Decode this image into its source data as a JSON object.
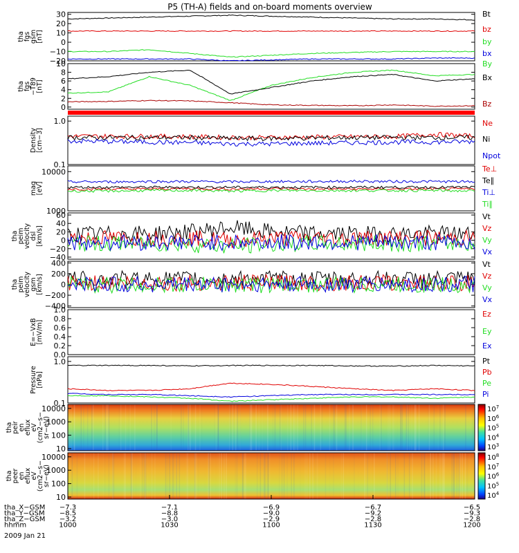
{
  "title": "P5 (TH-A) fields and on-board moments overview",
  "colors": {
    "black": "#000000",
    "red": "#e00000",
    "green": "#22dd22",
    "blue": "#0000dd",
    "darkred": "#aa0000",
    "brightred": "#ff0000"
  },
  "chart_data": [
    {
      "type": "line",
      "panel": "fgs_gsm",
      "ylabel": [
        "tha",
        "fgs",
        "gsm",
        "[nT]"
      ],
      "ylim": [
        -20,
        32
      ],
      "ticks": [
        "30",
        "20",
        "10",
        "0",
        "−10",
        "−20"
      ],
      "tick_values": [
        30,
        20,
        10,
        0,
        -10,
        -20
      ],
      "series": [
        {
          "name": "Bt",
          "color": "#000000",
          "y": [
            25,
            26,
            27,
            28,
            29,
            28,
            27,
            26,
            25,
            25,
            24
          ]
        },
        {
          "name": "bz",
          "color": "#e00000",
          "y": [
            12,
            12,
            12,
            12,
            12,
            12,
            12,
            12,
            12,
            12,
            12
          ]
        },
        {
          "name": "by",
          "color": "#22dd22",
          "y": [
            -10,
            -10,
            -8,
            -12,
            -16,
            -14,
            -12,
            -11,
            -10,
            -10,
            -10
          ]
        },
        {
          "name": "bx",
          "color": "#0000dd",
          "y": [
            -18,
            -18,
            -18,
            -18,
            -20,
            -19,
            -18,
            -18,
            -18,
            -17,
            -17
          ]
        }
      ]
    },
    {
      "type": "line",
      "panel": "fgs_gsm_tsy",
      "ylabel": [
        "tha",
        "fgs",
        "−T89",
        "[nT]"
      ],
      "ylim": [
        -0.5,
        10
      ],
      "ticks": [
        "10",
        "8",
        "6",
        "4",
        "2",
        "0"
      ],
      "tick_values": [
        10,
        8,
        6,
        4,
        2,
        0
      ],
      "series": [
        {
          "name": "By",
          "color": "#22dd22",
          "y": [
            3.2,
            3.5,
            7,
            5,
            1.5,
            5,
            6.8,
            8,
            8.5,
            7.2,
            7.5
          ]
        },
        {
          "name": "Bx",
          "color": "#000000",
          "y": [
            6.5,
            7,
            8,
            8.5,
            3,
            4.5,
            6,
            7,
            7.5,
            6,
            6.5
          ]
        },
        {
          "name": "Bz",
          "color": "#aa0000",
          "y": [
            1.2,
            1.3,
            1.5,
            1.4,
            1,
            0.5,
            0.4,
            0.3,
            0.5,
            0.2,
            0.3
          ]
        }
      ]
    },
    {
      "type": "line",
      "panel": "density",
      "ylabel": [
        "Density",
        "[cm−3]"
      ],
      "ylim": [
        0.1,
        1.3
      ],
      "log": true,
      "ticks": [
        "1.0",
        "0.1"
      ],
      "tick_values": [
        1,
        0.1
      ],
      "series": [
        {
          "name": "Ne",
          "color": "#e00000",
          "y": [
            0.45,
            0.45,
            0.45,
            0.44,
            0.42,
            0.42,
            0.43,
            0.44,
            0.44,
            0.5,
            0.45
          ]
        },
        {
          "name": "Ni",
          "color": "#000000",
          "y": [
            0.42,
            0.42,
            0.42,
            0.42,
            0.4,
            0.4,
            0.41,
            0.42,
            0.42,
            0.42,
            0.42
          ]
        },
        {
          "name": "Npot",
          "color": "#0000dd",
          "y": [
            0.35,
            0.34,
            0.33,
            0.32,
            0.3,
            0.3,
            0.31,
            0.32,
            0.33,
            0.33,
            0.34
          ]
        }
      ]
    },
    {
      "type": "line",
      "panel": "temperature",
      "ylabel": [
        "mag",
        "[eV]"
      ],
      "ylim": [
        1000,
        14000
      ],
      "log": true,
      "ticks": [
        "10000",
        "1000"
      ],
      "tick_values": [
        10000,
        1000
      ],
      "series": [
        {
          "name": "Te⊥",
          "color": "#e00000",
          "y": [
            3600,
            3600,
            3600,
            3700,
            3600,
            3700,
            3600,
            3600,
            3600,
            3600,
            3600
          ]
        },
        {
          "name": "Te∥",
          "color": "#000000",
          "y": [
            4000,
            4000,
            4000,
            4000,
            4000,
            4000,
            4000,
            4000,
            4000,
            4000,
            4000
          ]
        },
        {
          "name": "Ti⊥",
          "color": "#0000dd",
          "y": [
            5500,
            5500,
            5600,
            5600,
            5500,
            5600,
            5600,
            5700,
            5600,
            5600,
            5500
          ]
        },
        {
          "name": "Ti∥",
          "color": "#22dd22",
          "y": [
            3200,
            3200,
            3300,
            3300,
            3200,
            3300,
            3300,
            3300,
            3300,
            3300,
            3200
          ]
        }
      ]
    },
    {
      "type": "line",
      "panel": "velocity_dsl",
      "ylabel": [
        "tha",
        "peim",
        "velocity",
        "dsl",
        "[km/s]"
      ],
      "ylim": [
        -45,
        65
      ],
      "ticks": [
        "60",
        "40",
        "20",
        "0",
        "−20",
        "−40"
      ],
      "tick_values": [
        60,
        40,
        20,
        0,
        -20,
        -40
      ],
      "series": [
        {
          "name": "Vt",
          "color": "#000000",
          "y": [
            15,
            15,
            16,
            20,
            30,
            20,
            16,
            15,
            15,
            16,
            15
          ]
        },
        {
          "name": "Vz",
          "color": "#e00000",
          "y": [
            5,
            5,
            5,
            5,
            0,
            5,
            5,
            5,
            5,
            5,
            5
          ]
        },
        {
          "name": "Vy",
          "color": "#22dd22",
          "y": [
            -8,
            -8,
            -8,
            -10,
            -15,
            -10,
            -8,
            -8,
            -8,
            -8,
            -8
          ]
        },
        {
          "name": "Vx",
          "color": "#0000dd",
          "y": [
            -5,
            -5,
            -5,
            -5,
            -5,
            -5,
            -5,
            -5,
            -5,
            -5,
            -5
          ]
        }
      ]
    },
    {
      "type": "line",
      "panel": "velocity_gsm",
      "ylabel": [
        "tha",
        "peim",
        "velocity",
        "gsm",
        "[km/s]"
      ],
      "ylim": [
        -430,
        430
      ],
      "ticks": [
        "400",
        "200",
        "0",
        "−200",
        "−400"
      ],
      "tick_values": [
        400,
        200,
        0,
        -200,
        -400
      ],
      "series": [
        {
          "name": "Vt",
          "color": "#000000",
          "y": [
            100,
            100,
            100,
            100,
            110,
            100,
            100,
            100,
            100,
            100,
            100
          ]
        },
        {
          "name": "Vz",
          "color": "#e00000",
          "y": [
            30,
            30,
            30,
            30,
            30,
            30,
            30,
            30,
            30,
            30,
            30
          ]
        },
        {
          "name": "Vy",
          "color": "#22dd22",
          "y": [
            -10,
            -10,
            -10,
            -10,
            -10,
            -10,
            -10,
            -10,
            -10,
            -10,
            -10
          ]
        },
        {
          "name": "Vx",
          "color": "#0000dd",
          "y": [
            0,
            0,
            0,
            0,
            0,
            0,
            0,
            0,
            0,
            0,
            0
          ]
        }
      ]
    },
    {
      "type": "line",
      "panel": "efield",
      "ylabel": [
        "E=−VxB",
        "[mV/m]"
      ],
      "ylim": [
        0,
        1
      ],
      "ticks": [
        "1.0",
        "0.8",
        "0.6",
        "0.4",
        "0.2",
        "0.0"
      ],
      "tick_values": [
        1,
        0.8,
        0.6,
        0.4,
        0.2,
        0
      ],
      "series": [
        {
          "name": "Ez",
          "color": "#e00000",
          "y": []
        },
        {
          "name": "Ey",
          "color": "#22dd22",
          "y": []
        },
        {
          "name": "Ex",
          "color": "#0000dd",
          "y": []
        }
      ]
    },
    {
      "type": "line",
      "panel": "pressure",
      "ylabel": [
        "Pressure",
        "[nPa]"
      ],
      "ylim": [
        0.1,
        1.3
      ],
      "log": true,
      "ticks": [
        "1.0",
        "0.1"
      ],
      "tick_values": [
        1,
        0.1
      ],
      "series": [
        {
          "name": "Pt",
          "color": "#000000",
          "y": [
            0.8,
            0.8,
            0.8,
            0.78,
            0.8,
            0.8,
            0.8,
            0.78,
            0.77,
            0.8,
            0.78
          ]
        },
        {
          "name": "Pb",
          "color": "#e00000",
          "y": [
            0.22,
            0.2,
            0.2,
            0.22,
            0.3,
            0.28,
            0.25,
            0.22,
            0.2,
            0.22,
            0.2
          ]
        },
        {
          "name": "Pe",
          "color": "#22dd22",
          "y": [
            0.15,
            0.15,
            0.14,
            0.13,
            0.11,
            0.12,
            0.13,
            0.14,
            0.14,
            0.13,
            0.14
          ]
        },
        {
          "name": "Pi",
          "color": "#0000dd",
          "y": [
            0.17,
            0.16,
            0.16,
            0.15,
            0.14,
            0.15,
            0.16,
            0.16,
            0.16,
            0.16,
            0.16
          ]
        }
      ]
    },
    {
      "type": "heatmap",
      "panel": "peir_eflux",
      "ylabel": [
        "tha",
        "peir",
        "en",
        "eflux",
        "eV",
        "(cm2−s−",
        "sr−eV)"
      ],
      "log": true,
      "ticks": [
        "10000",
        "1000",
        "100",
        "10"
      ],
      "tick_values": [
        10000,
        1000,
        100,
        10
      ],
      "colorbar_ticks": [
        "10",
        "10",
        "10",
        "10",
        "10"
      ],
      "colorbar_exps": [
        "7",
        "6",
        "5",
        "4",
        "3"
      ]
    },
    {
      "type": "heatmap",
      "panel": "peer_eflux",
      "ylabel": [
        "tha",
        "peer",
        "en",
        "eflux",
        "eV",
        "(cm2−s−",
        "sr−eV)"
      ],
      "log": true,
      "ticks": [
        "10000",
        "1000",
        "100",
        "10"
      ],
      "tick_values": [
        10000,
        1000,
        100,
        10
      ],
      "colorbar_ticks": [
        "10",
        "10",
        "10",
        "10",
        "10"
      ],
      "colorbar_exps": [
        "8",
        "7",
        "6",
        "5",
        "4"
      ]
    }
  ],
  "x_axis": {
    "rows": [
      {
        "label": "tha_X−GSM",
        "values": [
          "−7.3",
          "−7.1",
          "−6.9",
          "−6.7",
          "−6.5"
        ]
      },
      {
        "label": "tha_Y−GSM",
        "values": [
          "−8.5",
          "−8.8",
          "−9.0",
          "−9.2",
          "−9.3"
        ]
      },
      {
        "label": "tha_Z−GSM",
        "values": [
          "−3.2",
          "−3.0",
          "−2.9",
          "−2.8",
          "−2.8"
        ]
      },
      {
        "label": "hhmm",
        "values": [
          "1000",
          "1030",
          "1100",
          "1130",
          "1200"
        ]
      }
    ],
    "date": "2009 Jan 21"
  }
}
